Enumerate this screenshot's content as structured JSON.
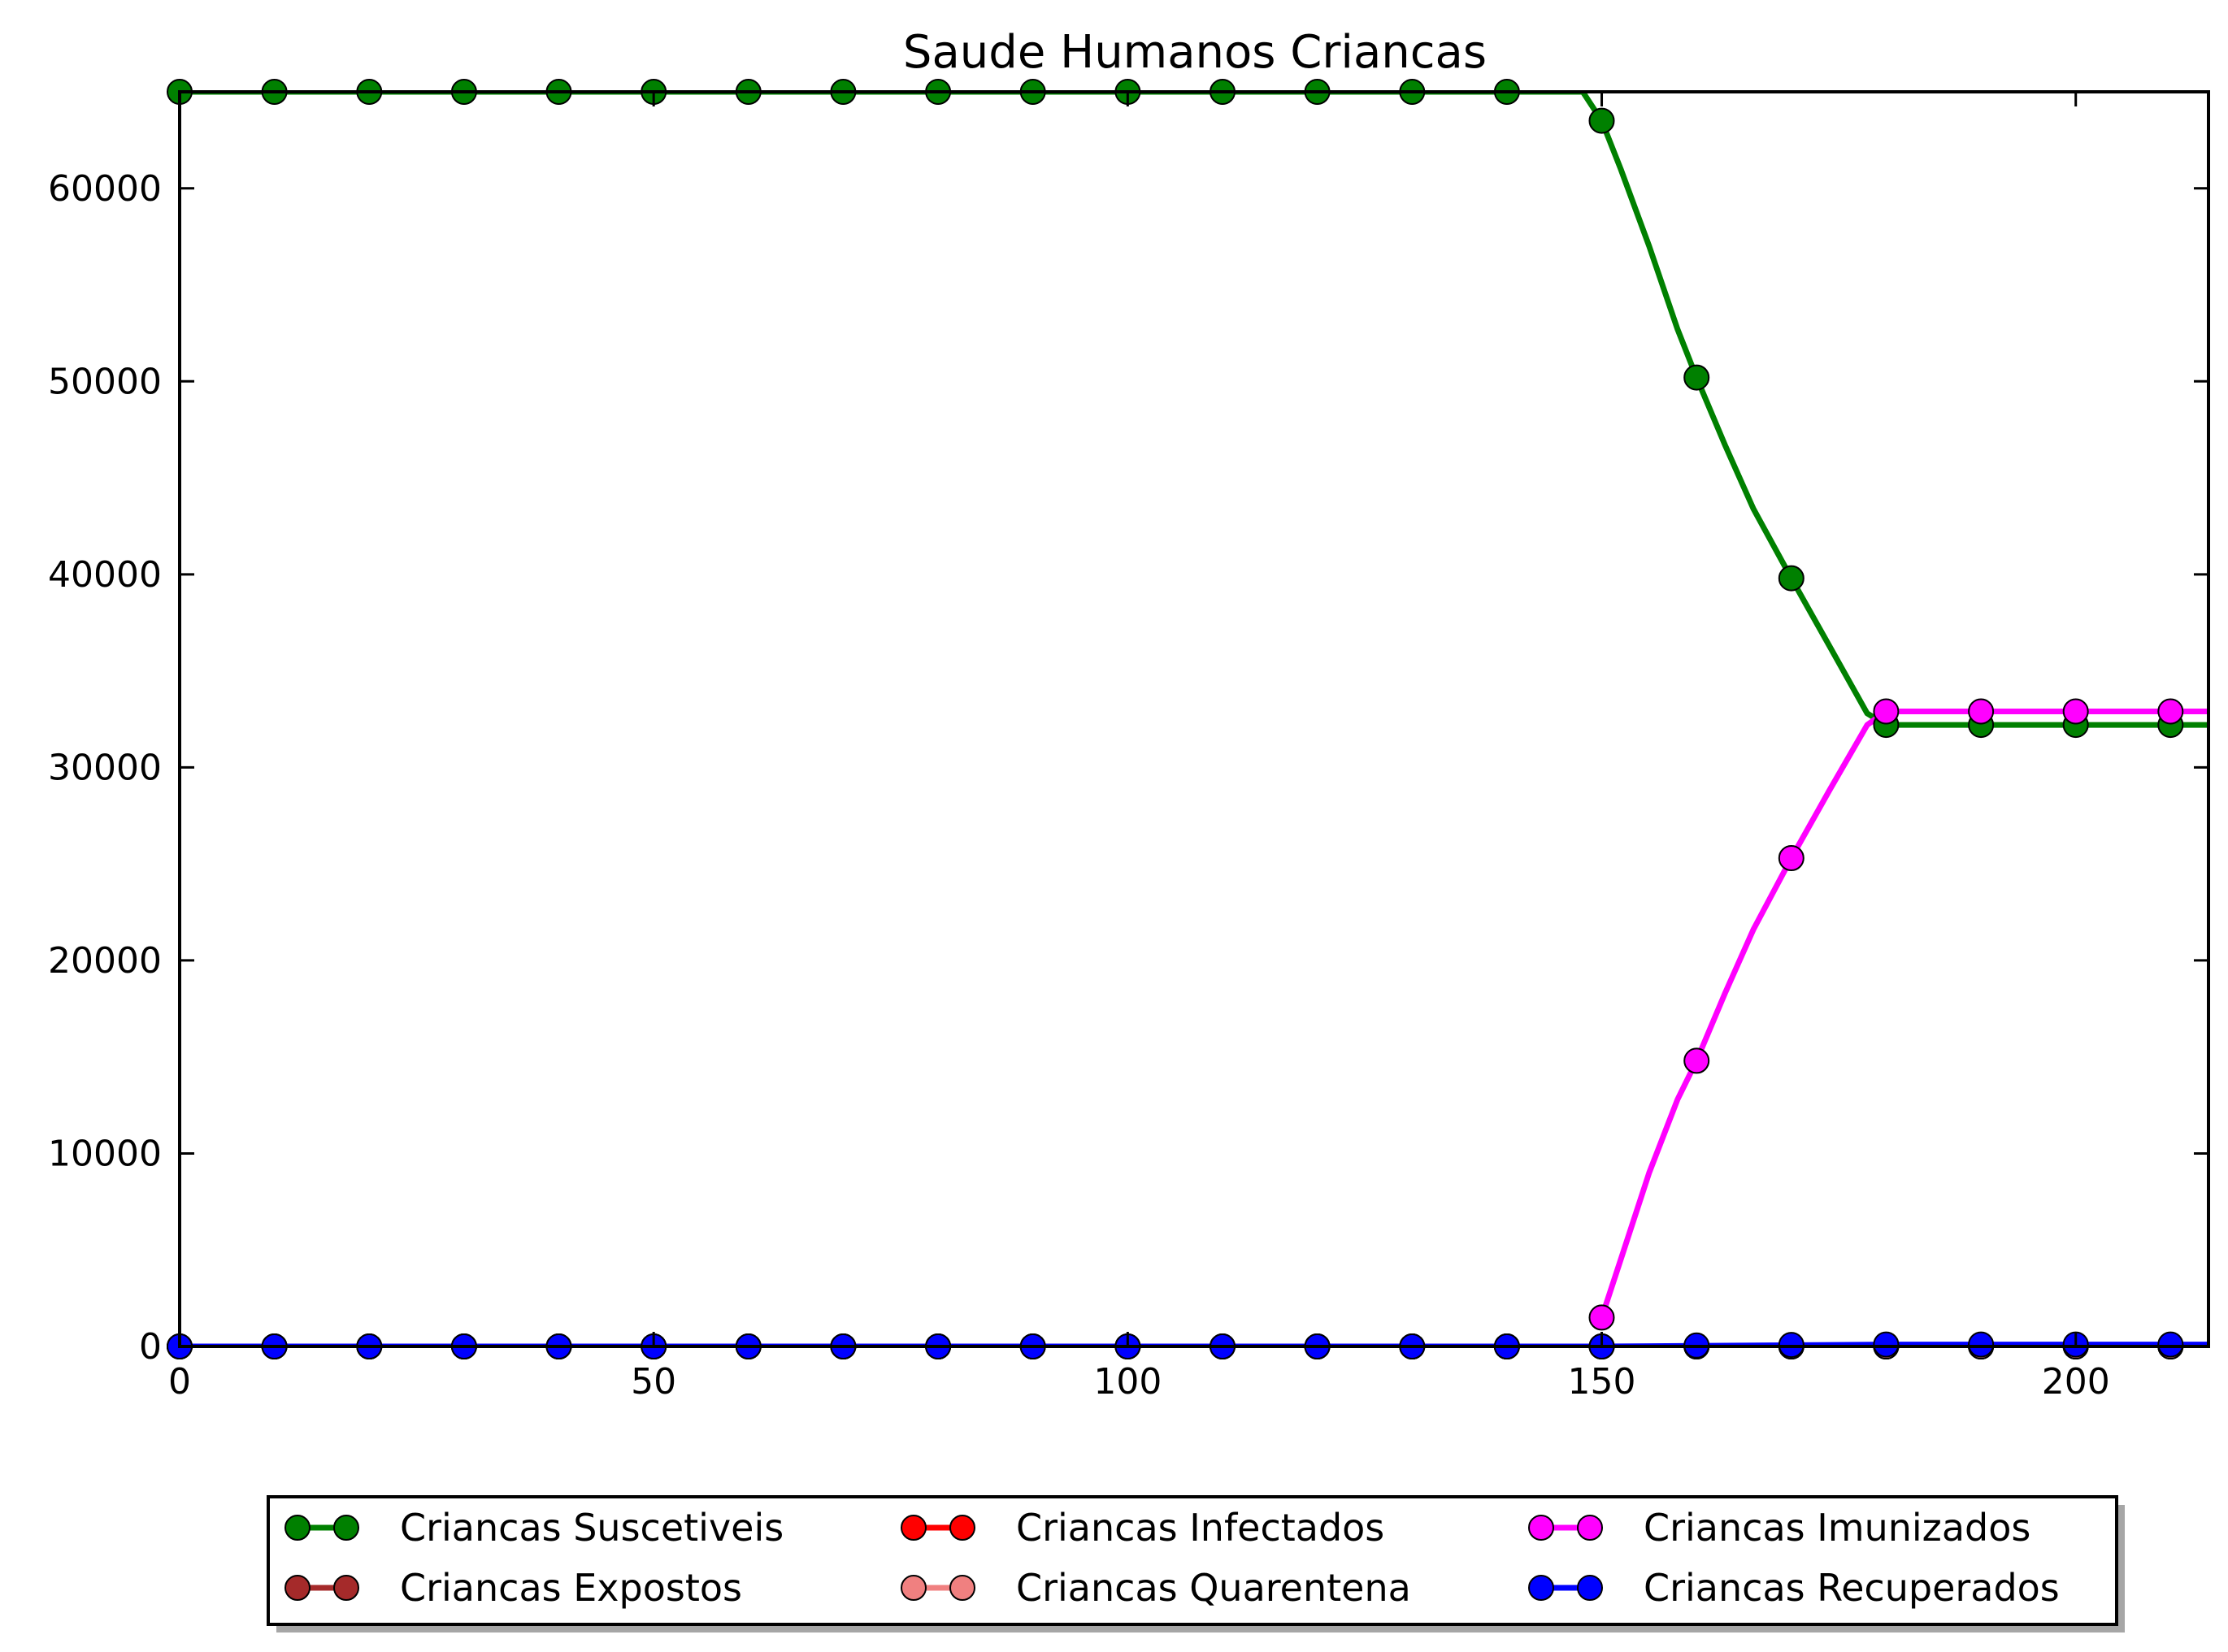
{
  "chart_data": {
    "type": "line",
    "title": "Saude Humanos Criancas",
    "xlabel": "",
    "ylabel": "",
    "xlim": [
      0,
      214
    ],
    "ylim": [
      0,
      65000
    ],
    "x_ticks": [
      0,
      50,
      100,
      150,
      200
    ],
    "y_ticks": [
      0,
      10000,
      20000,
      30000,
      40000,
      50000,
      60000
    ],
    "grid": false,
    "legend_position": "bottom-center",
    "legend_columns": 3,
    "marker_x": [
      0,
      10,
      20,
      30,
      40,
      50,
      60,
      70,
      80,
      90,
      100,
      110,
      120,
      130,
      140,
      150,
      160,
      170,
      180,
      190,
      200,
      210
    ],
    "series": [
      {
        "name": "Criancas Suscetiveis",
        "color": "#008000",
        "line_x": [
          0,
          148,
          150,
          152,
          155,
          158,
          160,
          163,
          166,
          170,
          174,
          178,
          180,
          190,
          200,
          214
        ],
        "line_y": [
          65000,
          65000,
          63500,
          61000,
          57000,
          52700,
          50200,
          46700,
          43400,
          39800,
          36300,
          32800,
          32200,
          32200,
          32200,
          32200
        ],
        "marker_y": [
          65000,
          65000,
          65000,
          65000,
          65000,
          65000,
          65000,
          65000,
          65000,
          65000,
          65000,
          65000,
          65000,
          65000,
          65000,
          63500,
          50200,
          39800,
          32200,
          32200,
          32200,
          32200
        ]
      },
      {
        "name": "Criancas Expostos",
        "color": "#a52a2a",
        "line_x": [
          0,
          214
        ],
        "line_y": [
          0,
          0
        ],
        "marker_y": [
          0,
          0,
          0,
          0,
          0,
          0,
          0,
          0,
          0,
          0,
          0,
          0,
          0,
          0,
          0,
          0,
          0,
          0,
          0,
          0,
          0,
          0
        ]
      },
      {
        "name": "Criancas Infectados",
        "color": "#ff0000",
        "line_x": [
          0,
          214
        ],
        "line_y": [
          0,
          0
        ],
        "marker_y": [
          0,
          0,
          0,
          0,
          0,
          0,
          0,
          0,
          0,
          0,
          0,
          0,
          0,
          0,
          0,
          0,
          0,
          0,
          0,
          0,
          0,
          0
        ]
      },
      {
        "name": "Criancas Quarentena",
        "color": "#f08080",
        "line_x": [
          0,
          214
        ],
        "line_y": [
          0,
          0
        ],
        "marker_y": [
          0,
          0,
          0,
          0,
          0,
          0,
          0,
          0,
          0,
          0,
          0,
          0,
          0,
          0,
          0,
          0,
          0,
          0,
          0,
          0,
          0,
          0
        ]
      },
      {
        "name": "Criancas Imunizados",
        "color": "#ff00ff",
        "line_x": [
          150,
          152,
          155,
          158,
          160,
          163,
          166,
          170,
          174,
          178,
          180,
          190,
          200,
          214
        ],
        "line_y": [
          1500,
          4500,
          9000,
          12800,
          14800,
          18300,
          21600,
          25300,
          28800,
          32200,
          32900,
          32900,
          32900,
          32900
        ],
        "marker_y": [
          null,
          null,
          null,
          null,
          null,
          null,
          null,
          null,
          null,
          null,
          null,
          null,
          null,
          null,
          null,
          1500,
          14800,
          25300,
          32900,
          32900,
          32900,
          32900
        ]
      },
      {
        "name": "Criancas Recuperados",
        "color": "#0000ff",
        "line_x": [
          0,
          150,
          180,
          214
        ],
        "line_y": [
          0,
          0,
          100,
          100
        ],
        "marker_y": [
          0,
          0,
          0,
          0,
          0,
          0,
          0,
          0,
          0,
          0,
          0,
          0,
          0,
          0,
          0,
          0,
          50,
          80,
          100,
          100,
          100,
          100
        ]
      }
    ]
  }
}
